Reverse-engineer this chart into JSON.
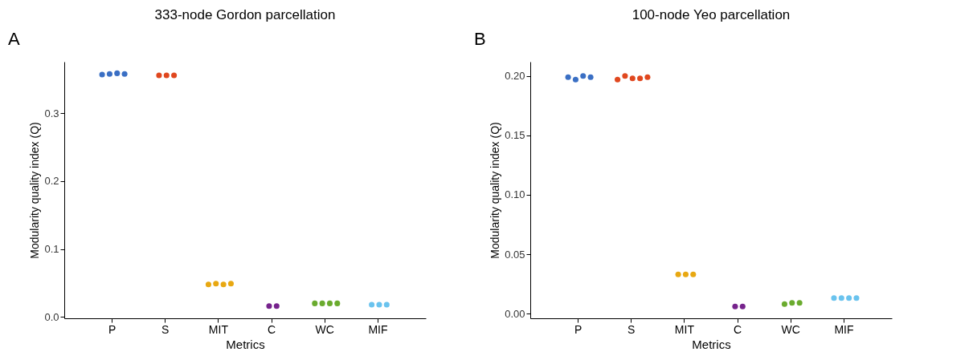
{
  "chart_data": [
    {
      "type": "scatter",
      "title": "333-node Gordon parcellation",
      "xlabel": "Metrics",
      "ylabel": "Modularity quality index (Q)",
      "annotations": [
        "A"
      ],
      "categories": [
        "P",
        "S",
        "MIT",
        "C",
        "WC",
        "MIF"
      ],
      "ylim": [
        -0.002,
        0.376
      ],
      "yticks": [
        {
          "value": 0,
          "label": "0.0"
        },
        0.1,
        0.2,
        0.3
      ],
      "grid": false,
      "legend": false,
      "marker": "circle",
      "series": [
        {
          "color": "#3a6fc4",
          "x": [
            "P",
            "P",
            "P",
            "P"
          ],
          "values": [
            0.357,
            0.358,
            0.359,
            0.358
          ]
        },
        {
          "color": "#e0471e",
          "x": [
            "S",
            "S",
            "S"
          ],
          "values": [
            0.356,
            0.356,
            0.356
          ]
        },
        {
          "color": "#e8a812",
          "x": [
            "MIT",
            "MIT",
            "MIT",
            "MIT"
          ],
          "values": [
            0.048,
            0.049,
            0.048,
            0.049
          ]
        },
        {
          "color": "#76238c",
          "x": [
            "C",
            "C"
          ],
          "values": [
            0.016,
            0.016
          ]
        },
        {
          "color": "#6aab2e",
          "x": [
            "WC",
            "WC",
            "WC",
            "WC"
          ],
          "values": [
            0.02,
            0.02,
            0.02,
            0.02
          ]
        },
        {
          "color": "#6ac3ee",
          "x": [
            "MIF",
            "MIF",
            "MIF"
          ],
          "values": [
            0.018,
            0.018,
            0.018
          ]
        }
      ]
    },
    {
      "type": "scatter",
      "title": "100-node Yeo parcellation",
      "xlabel": "Metrics",
      "ylabel": "Modularity quality index (Q)",
      "annotations": [
        "B"
      ],
      "categories": [
        "P",
        "S",
        "MIT",
        "C",
        "WC",
        "MIF"
      ],
      "ylim": [
        -0.004,
        0.212
      ],
      "yticks": [
        {
          "value": 0,
          "label": "0.00"
        },
        {
          "value": 0.05,
          "label": "0.05"
        },
        {
          "value": 0.1,
          "label": "0.10"
        },
        {
          "value": 0.15,
          "label": "0.15"
        },
        {
          "value": 0.2,
          "label": "0.20"
        }
      ],
      "grid": false,
      "legend": false,
      "marker": "circle",
      "series": [
        {
          "color": "#3a6fc4",
          "x": [
            "P",
            "P",
            "P",
            "P"
          ],
          "values": [
            0.199,
            0.197,
            0.2,
            0.199
          ]
        },
        {
          "color": "#e0471e",
          "x": [
            "S",
            "S",
            "S",
            "S",
            "S"
          ],
          "values": [
            0.197,
            0.2,
            0.198,
            0.198,
            0.199
          ]
        },
        {
          "color": "#e8a812",
          "x": [
            "MIT",
            "MIT",
            "MIT"
          ],
          "values": [
            0.033,
            0.033,
            0.033
          ]
        },
        {
          "color": "#76238c",
          "x": [
            "C",
            "C"
          ],
          "values": [
            0.006,
            0.006
          ]
        },
        {
          "color": "#6aab2e",
          "x": [
            "WC",
            "WC",
            "WC"
          ],
          "values": [
            0.008,
            0.009,
            0.009
          ]
        },
        {
          "color": "#6ac3ee",
          "x": [
            "MIF",
            "MIF",
            "MIF",
            "MIF"
          ],
          "values": [
            0.013,
            0.013,
            0.013,
            0.013
          ]
        }
      ]
    }
  ]
}
